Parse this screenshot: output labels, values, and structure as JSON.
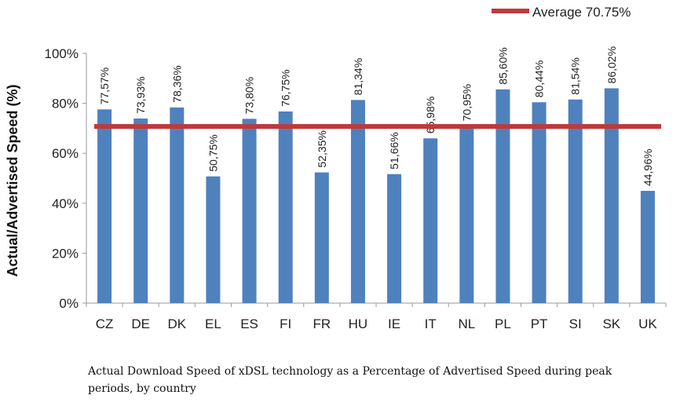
{
  "chart_data": {
    "type": "bar",
    "title": "",
    "xlabel": "",
    "ylabel": "Actual/Advertised Speed (%)",
    "ylim": [
      0,
      100
    ],
    "yticks": [
      "0%",
      "20%",
      "40%",
      "60%",
      "80%",
      "100%"
    ],
    "categories": [
      "CZ",
      "DE",
      "DK",
      "EL",
      "ES",
      "FI",
      "FR",
      "HU",
      "IE",
      "IT",
      "NL",
      "PL",
      "PT",
      "SI",
      "SK",
      "UK"
    ],
    "values": [
      77.57,
      73.93,
      78.36,
      50.75,
      73.8,
      76.75,
      52.35,
      81.34,
      51.66,
      65.98,
      70.95,
      85.6,
      80.44,
      81.54,
      86.02,
      44.96
    ],
    "data_labels": [
      "77,57%",
      "73,93%",
      "78,36%",
      "50,75%",
      "73,80%",
      "76,75%",
      "52,35%",
      "81,34%",
      "51,66%",
      "65,98%",
      "70,95%",
      "85,60%",
      "80,44%",
      "81,54%",
      "86,02%",
      "44,96%"
    ],
    "average": 70.75,
    "legend": [
      "Average 70.75%"
    ],
    "legend_position": "top-right",
    "bar_color": "#4f81bd",
    "average_color": "#c0393b"
  },
  "caption": "Actual Download Speed of xDSL technology as a Percentage of Advertised Speed during peak periods, by country"
}
